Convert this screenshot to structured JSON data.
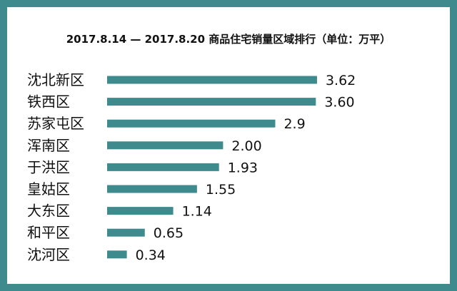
{
  "chart_data": {
    "type": "bar",
    "orientation": "horizontal",
    "title": "2017.8.14 — 2017.8.20 商品住宅销量区域排行（单位：万平）",
    "categories": [
      "沈北新区",
      "铁西区",
      "苏家屯区",
      "浑南区",
      "于洪区",
      "皇姑区",
      "大东区",
      "和平区",
      "沈河区"
    ],
    "values": [
      3.62,
      3.6,
      2.9,
      2.0,
      1.93,
      1.55,
      1.14,
      0.65,
      0.34
    ],
    "value_labels": [
      "3.62",
      "3.60",
      "2.9",
      "2.00",
      "1.93",
      "1.55",
      "1.14",
      "0.65",
      "0.34"
    ],
    "xlabel": "",
    "ylabel": "",
    "grid": false,
    "legend": "none",
    "bar_color": "#3e8a8d",
    "frame_color": "#3e8a8d"
  }
}
